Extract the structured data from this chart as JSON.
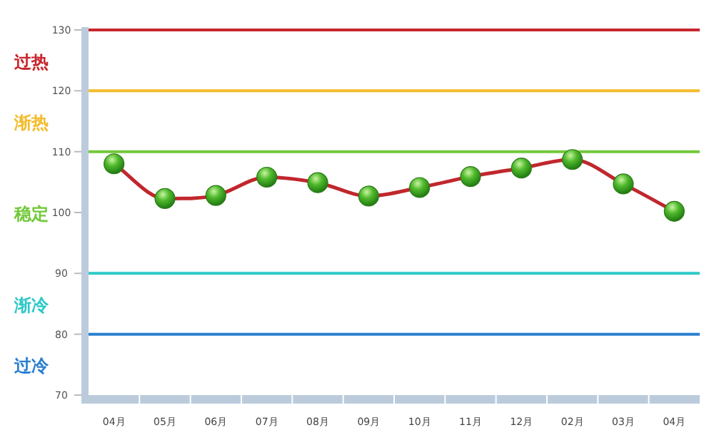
{
  "chart_data": {
    "type": "line",
    "categories": [
      "04月",
      "05月",
      "06月",
      "07月",
      "08月",
      "09月",
      "10月",
      "11月",
      "12月",
      "02月",
      "03月",
      "04月"
    ],
    "series": [
      {
        "color": "#c0272d",
        "values": [
          108.0,
          102.3,
          102.8,
          105.8,
          104.9,
          102.7,
          104.1,
          105.9,
          107.3,
          108.7,
          104.7,
          100.2
        ]
      }
    ],
    "ylim": [
      70,
      130
    ],
    "yticks": [
      70,
      80,
      90,
      100,
      110,
      120,
      130
    ],
    "marker": "circle",
    "ref_lines": [
      {
        "axis": "y",
        "value": 130,
        "label": "过热",
        "color": "#c8262d"
      },
      {
        "axis": "y",
        "value": 120,
        "label": "渐热",
        "color": "#f4bb2a"
      },
      {
        "axis": "y",
        "value": 110,
        "label": "稳定",
        "color": "#72c83a"
      },
      {
        "axis": "y",
        "value": 90,
        "label": "渐冷",
        "color": "#2ec8c8"
      },
      {
        "axis": "y",
        "value": 80,
        "label": "过冷",
        "color": "#2a7fd0"
      }
    ]
  }
}
